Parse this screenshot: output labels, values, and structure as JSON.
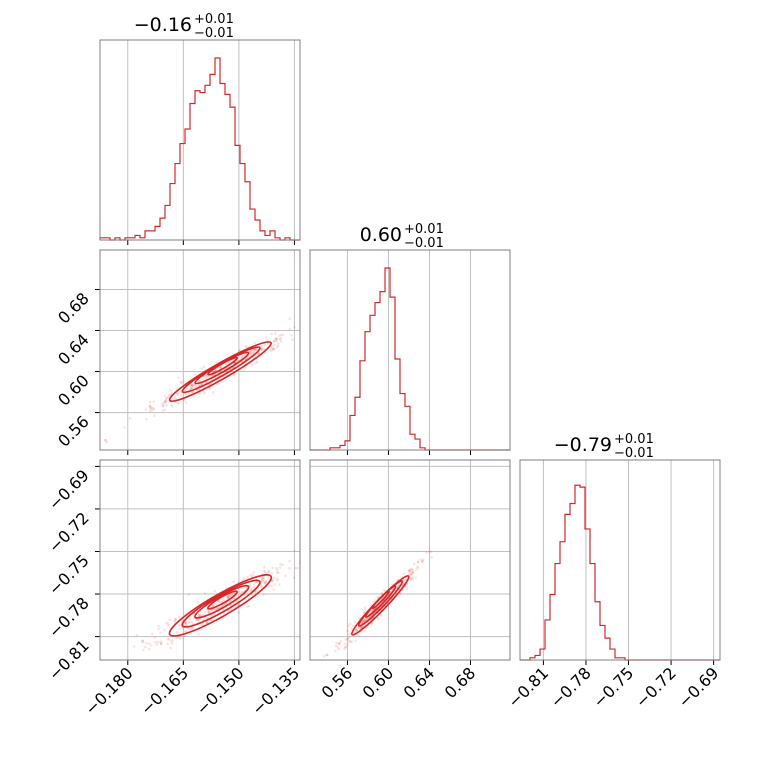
{
  "chart_data": {
    "type": "corner",
    "color": "#d62728",
    "grid": true,
    "parameters": [
      {
        "title_median": "−0.16",
        "title_plus": "+0.01",
        "title_minus": "−0.01",
        "range": [
          -0.1875,
          -0.1335
        ],
        "ticks": [
          {
            "value": -0.18,
            "label": "−0.180"
          },
          {
            "value": -0.165,
            "label": "−0.165"
          },
          {
            "value": -0.15,
            "label": "−0.150"
          },
          {
            "value": -0.135,
            "label": "−0.135"
          }
        ],
        "hist": [
          0.012,
          0.012,
          0.0,
          0.012,
          0.0,
          0.012,
          0.012,
          0.025,
          0.012,
          0.05,
          0.05,
          0.075,
          0.12,
          0.19,
          0.31,
          0.42,
          0.53,
          0.61,
          0.75,
          0.82,
          0.81,
          0.85,
          0.91,
          1.0,
          0.86,
          0.8,
          0.73,
          0.52,
          0.42,
          0.32,
          0.17,
          0.11,
          0.05,
          0.025,
          0.05,
          0.012,
          0.0,
          0.012,
          0.0,
          0.0
        ]
      },
      {
        "title_median": "0.60",
        "title_plus": "+0.01",
        "title_minus": "−0.01",
        "range": [
          0.5235,
          0.7185
        ],
        "ticks": [
          {
            "value": 0.56,
            "label": "0.56"
          },
          {
            "value": 0.6,
            "label": "0.60"
          },
          {
            "value": 0.64,
            "label": "0.64"
          },
          {
            "value": 0.68,
            "label": "0.68"
          }
        ],
        "hist": [
          0.0,
          0.0,
          0.0,
          0.0,
          0.012,
          0.012,
          0.025,
          0.05,
          0.19,
          0.29,
          0.49,
          0.65,
          0.74,
          0.81,
          0.87,
          1.0,
          0.84,
          0.5,
          0.31,
          0.24,
          0.087,
          0.06,
          0.012,
          0.0,
          0.0,
          0.0,
          0.0,
          0.0,
          0.0,
          0.0,
          0.0,
          0.0,
          0.0,
          0.0,
          0.0,
          0.0,
          0.0,
          0.0,
          0.0,
          0.0
        ]
      },
      {
        "title_median": "−0.79",
        "title_plus": "+0.01",
        "title_minus": "−0.01",
        "range": [
          -0.8265,
          -0.6855
        ],
        "ticks": [
          {
            "value": -0.81,
            "label": "−0.81"
          },
          {
            "value": -0.78,
            "label": "−0.78"
          },
          {
            "value": -0.75,
            "label": "−0.75"
          },
          {
            "value": -0.72,
            "label": "−0.72"
          },
          {
            "value": -0.69,
            "label": "−0.69"
          }
        ],
        "hist": [
          0.0,
          0.0,
          0.012,
          0.025,
          0.06,
          0.22,
          0.36,
          0.53,
          0.65,
          0.8,
          0.86,
          0.96,
          0.95,
          0.72,
          0.53,
          0.32,
          0.19,
          0.12,
          0.06,
          0.012,
          0.012,
          0.0,
          0.0,
          0.0,
          0.0,
          0.0,
          0.0,
          0.0,
          0.0,
          0.0,
          0.0,
          0.0,
          0.0,
          0.0,
          0.0,
          0.0,
          0.0,
          0.0,
          0.0,
          0.0
        ]
      }
    ],
    "pairs": [
      {
        "x": 0,
        "y": 1,
        "center": [
          -0.155,
          0.6
        ],
        "slope": 2.06,
        "sd_along": 0.0072,
        "sd_across": 0.0025,
        "samples": [
          [
            -0.186,
            0.533
          ],
          [
            -0.17,
            0.57
          ],
          [
            -0.14,
            0.632
          ],
          [
            -0.174,
            0.566
          ]
        ]
      },
      {
        "x": 0,
        "y": 2,
        "center": [
          -0.155,
          -0.788
        ],
        "slope": 1.5,
        "sd_along": 0.0072,
        "sd_across": 0.0025,
        "samples": [
          [
            -0.186,
            -0.83
          ],
          [
            -0.171,
            -0.815
          ],
          [
            -0.141,
            -0.77
          ],
          [
            -0.176,
            -0.813
          ]
        ]
      },
      {
        "x": 1,
        "y": 2,
        "center": [
          0.592,
          -0.788
        ],
        "slope": 0.75,
        "sd_along": 0.0145,
        "sd_across": 0.0012,
        "samples": [
          [
            0.53,
            -0.828
          ],
          [
            0.54,
            -0.823
          ],
          [
            0.633,
            -0.757
          ],
          [
            0.552,
            -0.815
          ]
        ]
      }
    ]
  }
}
